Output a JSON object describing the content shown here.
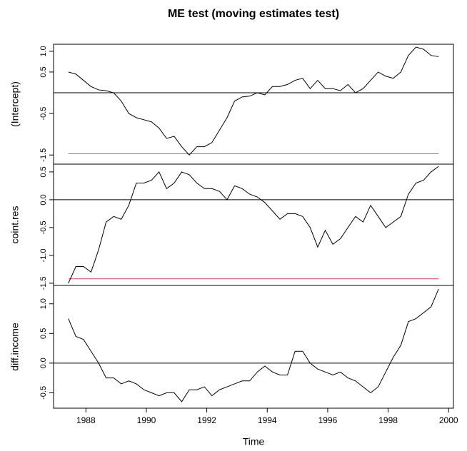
{
  "chart_data": [
    {
      "type": "line",
      "title": "ME test (moving estimates test)",
      "ylabel": "(Intercept)",
      "x": [
        1987.42,
        1987.67,
        1987.92,
        1988.17,
        1988.42,
        1988.67,
        1988.92,
        1989.17,
        1989.42,
        1989.67,
        1989.92,
        1990.17,
        1990.42,
        1990.67,
        1990.92,
        1991.17,
        1991.42,
        1991.67,
        1991.92,
        1992.17,
        1992.42,
        1992.67,
        1992.92,
        1993.17,
        1993.42,
        1993.67,
        1993.92,
        1994.17,
        1994.42,
        1994.67,
        1994.92,
        1995.17,
        1995.42,
        1995.67,
        1995.92,
        1996.17,
        1996.42,
        1996.67,
        1996.92,
        1997.17,
        1997.42,
        1997.67,
        1997.92,
        1998.17,
        1998.42,
        1998.67,
        1998.92,
        1999.17,
        1999.42,
        1999.67
      ],
      "values": [
        0.5,
        0.45,
        0.3,
        0.15,
        0.07,
        0.05,
        0.0,
        -0.2,
        -0.5,
        -0.6,
        -0.65,
        -0.7,
        -0.85,
        -1.1,
        -1.05,
        -1.3,
        -1.5,
        -1.3,
        -1.3,
        -1.2,
        -0.9,
        -0.6,
        -0.2,
        -0.1,
        -0.08,
        0.0,
        -0.05,
        0.15,
        0.15,
        0.2,
        0.3,
        0.35,
        0.1,
        0.3,
        0.1,
        0.1,
        0.05,
        0.2,
        0.0,
        0.1,
        0.3,
        0.5,
        0.4,
        0.35,
        0.5,
        0.9,
        1.1,
        1.05,
        0.9,
        0.87
      ],
      "color": "#000000",
      "xlim": [
        1986.93,
        2000.16
      ],
      "ylim": [
        -1.72,
        1.17
      ],
      "yticks": [
        {
          "value": 1,
          "label": "1.0"
        },
        0.5,
        -0.5,
        -1.5
      ],
      "reference_lines": [
        {
          "value": 0,
          "color": "#000000"
        },
        {
          "value": -1.47,
          "color": "#df536b"
        }
      ]
    },
    {
      "type": "line",
      "ylabel": "coint.res",
      "x": [
        1987.42,
        1987.67,
        1987.92,
        1988.17,
        1988.42,
        1988.67,
        1988.92,
        1989.17,
        1989.42,
        1989.67,
        1989.92,
        1990.17,
        1990.42,
        1990.67,
        1990.92,
        1991.17,
        1991.42,
        1991.67,
        1991.92,
        1992.17,
        1992.42,
        1992.67,
        1992.92,
        1993.17,
        1993.42,
        1993.67,
        1993.92,
        1994.17,
        1994.42,
        1994.67,
        1994.92,
        1995.17,
        1995.42,
        1995.67,
        1995.92,
        1996.17,
        1996.42,
        1996.67,
        1996.92,
        1997.17,
        1997.42,
        1997.67,
        1997.92,
        1998.17,
        1998.42,
        1998.67,
        1998.92,
        1999.17,
        1999.42,
        1999.67
      ],
      "values": [
        -1.5,
        -1.2,
        -1.2,
        -1.3,
        -0.9,
        -0.4,
        -0.3,
        -0.35,
        -0.1,
        0.3,
        0.3,
        0.35,
        0.5,
        0.2,
        0.3,
        0.5,
        0.45,
        0.3,
        0.2,
        0.2,
        0.15,
        0.0,
        0.25,
        0.2,
        0.1,
        0.05,
        -0.05,
        -0.2,
        -0.35,
        -0.25,
        -0.25,
        -0.3,
        -0.5,
        -0.85,
        -0.55,
        -0.8,
        -0.7,
        -0.5,
        -0.3,
        -0.4,
        -0.1,
        -0.3,
        -0.5,
        -0.4,
        -0.3,
        0.1,
        0.3,
        0.35,
        0.5,
        0.6
      ],
      "color": "#000000",
      "xlim": [
        1986.93,
        2000.16
      ],
      "ylim": [
        -1.54,
        0.64
      ],
      "yticks": [
        0.5,
        {
          "value": 0,
          "label": "0.0"
        },
        -0.5,
        {
          "value": -1,
          "label": "-1.0"
        },
        -1.5
      ],
      "reference_lines": [
        {
          "value": 0,
          "color": "#000000"
        },
        {
          "value": -1.42,
          "color": "#df536b"
        }
      ]
    },
    {
      "type": "line",
      "ylabel": "diff.income",
      "xlabel": "Time",
      "x": [
        1987.42,
        1987.67,
        1987.92,
        1988.17,
        1988.42,
        1988.67,
        1988.92,
        1989.17,
        1989.42,
        1989.67,
        1989.92,
        1990.17,
        1990.42,
        1990.67,
        1990.92,
        1991.17,
        1991.42,
        1991.67,
        1991.92,
        1992.17,
        1992.42,
        1992.67,
        1992.92,
        1993.17,
        1993.42,
        1993.67,
        1993.92,
        1994.17,
        1994.42,
        1994.67,
        1994.92,
        1995.17,
        1995.42,
        1995.67,
        1995.92,
        1996.17,
        1996.42,
        1996.67,
        1996.92,
        1997.17,
        1997.42,
        1997.67,
        1997.92,
        1998.17,
        1998.42,
        1998.67,
        1998.92,
        1999.17,
        1999.42,
        1999.67
      ],
      "values": [
        0.75,
        0.45,
        0.4,
        0.2,
        0.0,
        -0.25,
        -0.25,
        -0.35,
        -0.3,
        -0.35,
        -0.45,
        -0.5,
        -0.55,
        -0.5,
        -0.5,
        -0.65,
        -0.45,
        -0.45,
        -0.4,
        -0.55,
        -0.45,
        -0.4,
        -0.35,
        -0.3,
        -0.3,
        -0.15,
        -0.05,
        -0.15,
        -0.2,
        -0.2,
        0.2,
        0.2,
        0.0,
        -0.1,
        -0.15,
        -0.2,
        -0.15,
        -0.25,
        -0.3,
        -0.4,
        -0.5,
        -0.4,
        -0.15,
        0.1,
        0.3,
        0.7,
        0.75,
        0.85,
        0.95,
        1.25
      ],
      "color": "#000000",
      "xlim": [
        1986.93,
        2000.16
      ],
      "ylim": [
        -0.76,
        1.31
      ],
      "xticks": [
        1988,
        1990,
        1992,
        1994,
        1996,
        1998,
        2000
      ],
      "yticks": [
        {
          "value": 1,
          "label": "1.0"
        },
        0.5,
        {
          "value": 0,
          "label": "0.0"
        },
        -0.5
      ],
      "reference_lines": [
        {
          "value": 0,
          "color": "#000000"
        }
      ]
    }
  ]
}
